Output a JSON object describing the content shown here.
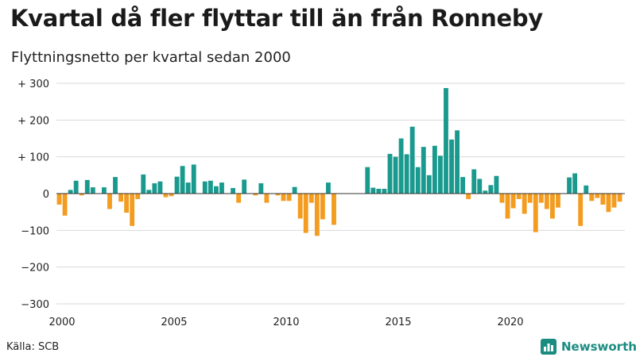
{
  "title": "Kvartal då fler flyttar till än från Ronneby",
  "subtitle": "Flyttningsnetto per kvartal sedan 2000",
  "source": "Källa: SCB",
  "brand": "Newsworthy",
  "colors": {
    "positive": "#1a9a8e",
    "negative": "#f39c1f",
    "grid": "#d9d9d9",
    "brand": "#1a8c80"
  },
  "chart_data": {
    "type": "bar",
    "title": "Kvartal då fler flyttar till än från Ronneby",
    "subtitle": "Flyttningsnetto per kvartal sedan 2000",
    "x_start": "2000 Q1",
    "x_ticks": [
      "2000",
      "2005",
      "2010",
      "2015",
      "2020"
    ],
    "y_ticks": [
      300,
      200,
      100,
      0,
      -100,
      -200,
      -300
    ],
    "y_tick_labels": [
      "+ 300",
      "+ 200",
      "+ 100",
      "0",
      "−100",
      "−200",
      "−300"
    ],
    "ylim": [
      -300,
      300
    ],
    "grid": true,
    "values": [
      -30,
      -60,
      10,
      35,
      -5,
      37,
      17,
      0,
      17,
      -42,
      45,
      -22,
      -52,
      -88,
      -15,
      52,
      10,
      28,
      33,
      -10,
      -7,
      46,
      75,
      30,
      79,
      0,
      33,
      35,
      20,
      30,
      0,
      15,
      -25,
      38,
      0,
      -5,
      28,
      -25,
      0,
      -5,
      -20,
      -20,
      18,
      -68,
      -107,
      -25,
      -115,
      -70,
      30,
      -85,
      0,
      0,
      0,
      0,
      0,
      72,
      16,
      13,
      13,
      108,
      100,
      150,
      107,
      182,
      72,
      127,
      50,
      130,
      103,
      287,
      147,
      172,
      45,
      -15,
      66,
      40,
      8,
      23,
      48,
      -25,
      -68,
      -40,
      -15,
      -55,
      -25,
      -105,
      -25,
      -42,
      -68,
      -38,
      0,
      44,
      55,
      -88,
      22,
      -20,
      -12,
      -30,
      -50,
      -38,
      -22
    ]
  }
}
